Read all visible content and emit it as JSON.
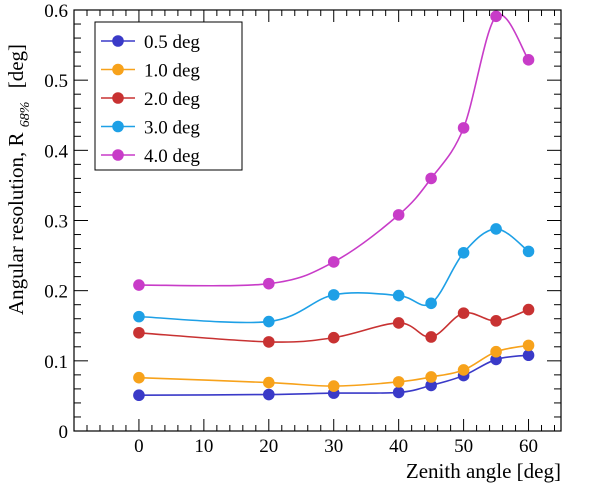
{
  "chart_data": {
    "type": "line",
    "title": "",
    "xlabel": "Zenith angle [deg]",
    "ylabel_main": "Angular resolution, R",
    "ylabel_sub": "68%",
    "ylabel_unit": "[deg]",
    "xlim": [
      -10,
      65
    ],
    "ylim": [
      0,
      0.6
    ],
    "x_ticks": [
      0,
      10,
      20,
      30,
      40,
      50,
      60
    ],
    "x_tick_labels": [
      "0",
      "10",
      "20",
      "30",
      "40",
      "50",
      "60"
    ],
    "y_ticks": [
      0,
      0.1,
      0.2,
      0.3,
      0.4,
      0.5,
      0.6
    ],
    "y_tick_labels": [
      "0",
      "0.1",
      "0.2",
      "0.3",
      "0.4",
      "0.5",
      "0.6"
    ],
    "grid": false,
    "legend_position": "top-left",
    "x": [
      0,
      20,
      30,
      40,
      45,
      50,
      55,
      60
    ],
    "series": [
      {
        "name": "0.5 deg",
        "color": "#3a3ac8",
        "values": [
          0.051,
          0.052,
          0.054,
          0.055,
          0.065,
          0.079,
          0.102,
          0.108
        ]
      },
      {
        "name": "1.0 deg",
        "color": "#f7a21b",
        "values": [
          0.076,
          0.069,
          0.064,
          0.07,
          0.077,
          0.087,
          0.113,
          0.122
        ]
      },
      {
        "name": "2.0 deg",
        "color": "#c83232",
        "values": [
          0.14,
          0.127,
          0.133,
          0.154,
          0.134,
          0.168,
          0.157,
          0.173
        ]
      },
      {
        "name": "3.0 deg",
        "color": "#1ea0e6",
        "values": [
          0.163,
          0.156,
          0.194,
          0.193,
          0.182,
          0.254,
          0.288,
          0.256
        ]
      },
      {
        "name": "4.0 deg",
        "color": "#c83cc8",
        "values": [
          0.208,
          0.21,
          0.241,
          0.308,
          0.36,
          0.432,
          0.591,
          0.529
        ]
      }
    ]
  }
}
